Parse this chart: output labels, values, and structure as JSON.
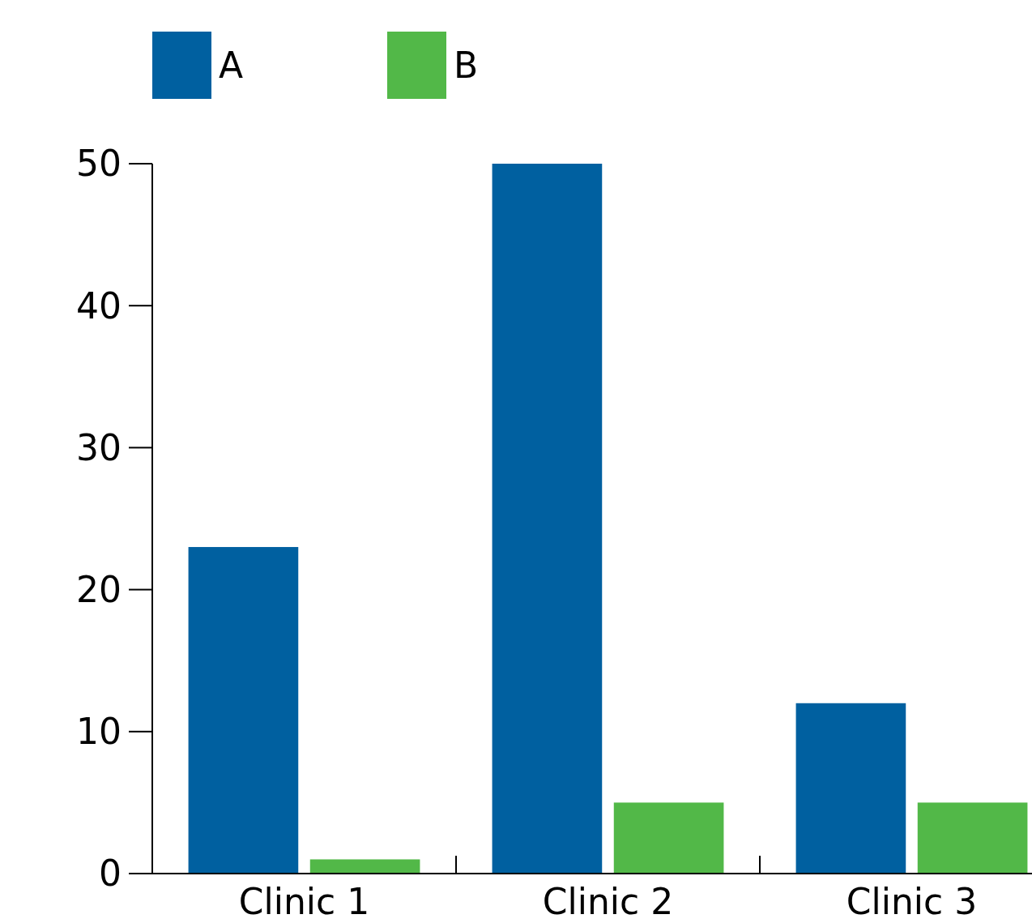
{
  "chart_data": {
    "type": "bar",
    "categories": [
      "Clinic 1",
      "Clinic 2",
      "Clinic 3"
    ],
    "series": [
      {
        "name": "A",
        "color": "#0060a0",
        "values": [
          23,
          50,
          12
        ]
      },
      {
        "name": "B",
        "color": "#52b848",
        "values": [
          1,
          5,
          5
        ]
      }
    ],
    "ylim": [
      0,
      50
    ],
    "yticks": [
      0,
      10,
      20,
      30,
      40,
      50
    ],
    "grid": false,
    "legend": "top left"
  }
}
